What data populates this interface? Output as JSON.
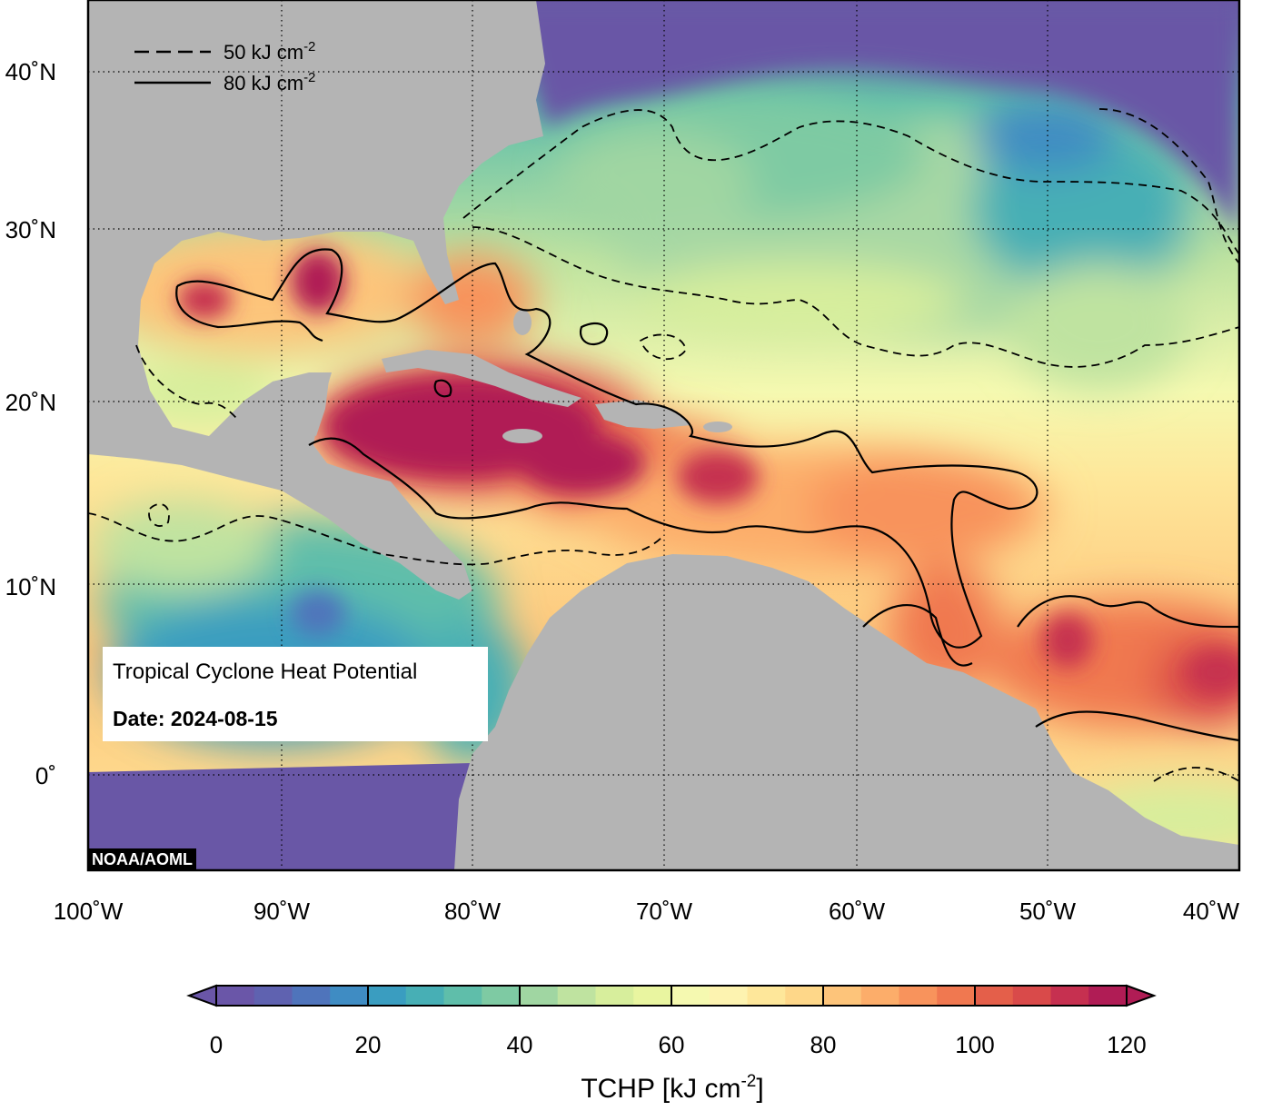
{
  "map": {
    "title": "Tropical Cyclone Heat Potential",
    "date_label": "Date: 2024-08-15",
    "credit": "NOAA/AOML",
    "lon_ticks": [
      "100˚W",
      "90˚W",
      "80˚W",
      "70˚W",
      "60˚W",
      "50˚W",
      "40˚W"
    ],
    "lat_ticks": [
      "40˚N",
      "30˚N",
      "20˚N",
      "10˚N",
      "0˚"
    ],
    "contour_legend": [
      {
        "value": "50",
        "unit": "kJ cm",
        "exp": "-2",
        "style": "dashed"
      },
      {
        "value": "80",
        "unit": "kJ cm",
        "exp": "-2",
        "style": "solid"
      }
    ],
    "extent": {
      "lon": [
        -100,
        -40
      ],
      "lat": [
        -5,
        45
      ]
    }
  },
  "colorbar": {
    "min": 0,
    "max": 120,
    "step": 5,
    "ticks": [
      "0",
      "20",
      "40",
      "60",
      "80",
      "100",
      "120"
    ],
    "label_main": "TCHP [kJ cm",
    "label_exp": "-2",
    "label_end": "]",
    "colors": [
      "#6a56a8",
      "#5f62b0",
      "#4f74bb",
      "#3f8cc3",
      "#3a9dc0",
      "#47afb5",
      "#5fbeaa",
      "#7ecaa3",
      "#a0d6a2",
      "#bfe3a0",
      "#d7ee9c",
      "#e9f5a0",
      "#f5f9b0",
      "#fdf3b0",
      "#fee79a",
      "#fed789",
      "#fdc47a",
      "#fcad6a",
      "#f8935c",
      "#f07850",
      "#e45f4a",
      "#d94a4a",
      "#c63050",
      "#b01c55"
    ]
  },
  "colors": {
    "land": "#b4b4b4",
    "cold_water": "#6957a6",
    "coast": "#ffffff"
  }
}
